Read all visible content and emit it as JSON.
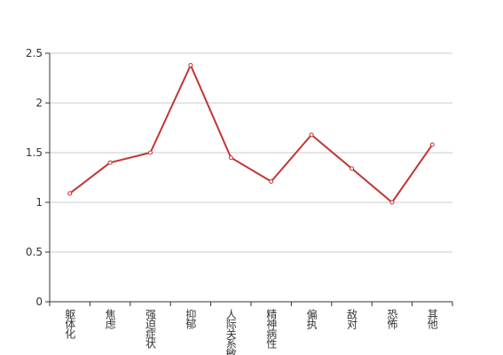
{
  "chart_data": {
    "type": "line",
    "categories": [
      "躯体化",
      "焦虑",
      "强迫症状",
      "抑郁",
      "人际关系敏感",
      "精神病性",
      "偏执",
      "敌对",
      "恐怖",
      "其他"
    ],
    "values": [
      1.09,
      1.4,
      1.5,
      2.38,
      1.45,
      1.21,
      1.68,
      1.34,
      1.0,
      1.58
    ],
    "color": "#c23531",
    "ylim": [
      0,
      2.5
    ],
    "yticks": [
      0,
      0.5,
      1,
      1.5,
      2,
      2.5
    ],
    "grid": true
  }
}
